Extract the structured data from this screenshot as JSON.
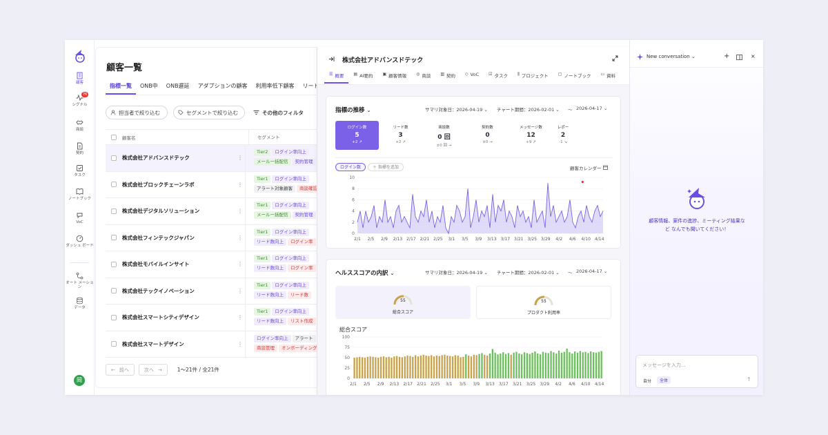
{
  "rail": {
    "items": [
      {
        "label": "顧客",
        "icon": "building-icon"
      },
      {
        "label": "シグナル",
        "icon": "pulse-icon",
        "badge": "76"
      },
      {
        "label": "商談",
        "icon": "handshake-icon"
      },
      {
        "label": "契約",
        "icon": "document-icon"
      },
      {
        "label": "タスク",
        "icon": "checkbox-icon"
      },
      {
        "label": "ノートブック",
        "icon": "book-icon"
      },
      {
        "label": "VoC",
        "icon": "voc-icon"
      },
      {
        "label": "ダッシュ ボード",
        "icon": "dashboard-icon"
      },
      {
        "label": "オート メーション",
        "icon": "automation-icon"
      },
      {
        "label": "データ",
        "icon": "database-icon"
      }
    ],
    "avatar": "岡"
  },
  "list": {
    "title": "顧客一覧",
    "tabs": [
      "指標一覧",
      "ONB中",
      "ONB遅延",
      "アダプションの顧客",
      "利用率低下顧客",
      "リード"
    ],
    "filters": {
      "assignee": "担当者で絞り込む",
      "segment": "セグメントで絞り込む",
      "other": "その他のフィルタ"
    },
    "columns": {
      "name": "顧客名",
      "segment": "セグメント"
    },
    "rows": [
      {
        "name": "株式会社アドバンスドテック",
        "tags": [
          {
            "t": "Tier2",
            "c": "g"
          },
          {
            "t": "ログイン率向上",
            "c": "p"
          },
          {
            "t": "メール一括配信",
            "c": "g"
          },
          {
            "t": "契約管理",
            "c": "p"
          }
        ]
      },
      {
        "name": "株式会社ブロックチェーンラボ",
        "tags": [
          {
            "t": "Tier1",
            "c": "g"
          },
          {
            "t": "ログイン率向上",
            "c": "p"
          },
          {
            "t": "アラート対象顧客",
            "c": "gr"
          },
          {
            "t": "商談確認",
            "c": "r"
          }
        ]
      },
      {
        "name": "株式会社デジタルソリューション",
        "tags": [
          {
            "t": "Tier1",
            "c": "g"
          },
          {
            "t": "ログイン率向上",
            "c": "p"
          },
          {
            "t": "メール一括配信",
            "c": "g"
          },
          {
            "t": "契約管理",
            "c": "p"
          }
        ]
      },
      {
        "name": "株式会社フィンテックジャパン",
        "tags": [
          {
            "t": "Tier1",
            "c": "g"
          },
          {
            "t": "ログイン率向上",
            "c": "p"
          },
          {
            "t": "リード数向上",
            "c": "p"
          },
          {
            "t": "ログイン率",
            "c": "r"
          }
        ]
      },
      {
        "name": "株式会社モバイルインサイト",
        "tags": [
          {
            "t": "Tier1",
            "c": "g"
          },
          {
            "t": "ログイン率向上",
            "c": "p"
          },
          {
            "t": "リード数向上",
            "c": "p"
          },
          {
            "t": "ログイン率",
            "c": "r"
          }
        ]
      },
      {
        "name": "株式会社テックイノベーション",
        "tags": [
          {
            "t": "Tier1",
            "c": "g"
          },
          {
            "t": "ログイン率向上",
            "c": "p"
          },
          {
            "t": "リード数向上",
            "c": "p"
          },
          {
            "t": "リード数",
            "c": "r"
          }
        ]
      },
      {
        "name": "株式会社スマートシティデザイン",
        "tags": [
          {
            "t": "Tier1",
            "c": "g"
          },
          {
            "t": "ログイン率向上",
            "c": "p"
          },
          {
            "t": "リード数向上",
            "c": "p"
          },
          {
            "t": "リスト作成",
            "c": "r"
          }
        ]
      },
      {
        "name": "株式会社スマートデザイン",
        "tags": [
          {
            "t": "ログイン率向上",
            "c": "p"
          },
          {
            "t": "アラート",
            "c": "gr"
          },
          {
            "t": "商談管理",
            "c": "r"
          },
          {
            "t": "オンボーディング",
            "c": "r"
          }
        ]
      }
    ],
    "pager": {
      "prev": "前へ",
      "next": "次へ",
      "count": "1〜21件 / 全21件"
    }
  },
  "detail": {
    "company": "株式会社アドバンスドテック",
    "tabs": [
      "概要",
      "AI要約",
      "顧客情報",
      "商談",
      "契約",
      "VoC",
      "タスク",
      "プロジェクト",
      "ノートブック",
      "資料"
    ],
    "metrics_card": {
      "title": "指標の推移",
      "summary_date": "サマリ対象日：2026-04-19",
      "chart_period": "チャート期間：2026-02-01",
      "tilde": "〜",
      "end_date": "2026-04-17",
      "kpis": [
        {
          "label": "ログイン数",
          "value": "5",
          "delta": "+2 ↗"
        },
        {
          "label": "リード数",
          "value": "3",
          "delta": "+2 ↗"
        },
        {
          "label": "商談数",
          "value": "0 回",
          "delta": "±0 回 →"
        },
        {
          "label": "契約数",
          "value": "0",
          "delta": "±0 →"
        },
        {
          "label": "メッセージ数",
          "value": "12",
          "delta": "+9 ↗"
        },
        {
          "label": "レポー",
          "value": "2",
          "delta": "-1 ↘"
        }
      ],
      "chip_active": "ログイン数",
      "chip_add": "＋ 指標を追加",
      "calendar": "顧客カレンダー"
    },
    "health_card": {
      "title": "ヘルススコアの内訳",
      "summary_date": "サマリ対象日：2026-04-19",
      "chart_period": "チャート期間：2026-02-01",
      "tilde": "〜",
      "end_date": "2026-04-17",
      "total": {
        "label": "総合スコア",
        "value": "55"
      },
      "usage": {
        "label": "プロダクト利用率",
        "value": "55"
      },
      "chart_title": "総合スコア"
    }
  },
  "chart_data": [
    {
      "type": "area",
      "title": "ログイン数",
      "x_ticks": [
        "2/1",
        "2/5",
        "2/9",
        "2/13",
        "2/17",
        "2/21",
        "2/25",
        "3/1",
        "3/5",
        "3/9",
        "3/13",
        "3/17",
        "3/21",
        "3/25",
        "3/29",
        "4/2",
        "4/6",
        "4/10",
        "4/14"
      ],
      "y_ticks": [
        "0",
        "2",
        "4",
        "6",
        "8",
        "10"
      ],
      "ylim": [
        0,
        10
      ],
      "values": [
        2,
        4,
        1,
        4,
        2,
        3,
        5,
        1,
        3,
        2,
        6,
        2,
        3,
        1,
        4,
        5,
        2,
        3,
        2,
        1,
        7,
        3,
        2,
        4,
        3,
        6,
        2,
        4,
        1,
        3,
        2,
        5,
        1,
        0,
        3,
        2,
        5,
        4,
        2,
        3,
        8,
        1,
        3,
        6,
        2,
        4,
        3,
        5,
        1,
        7,
        2,
        5,
        4,
        6,
        2,
        4,
        3,
        1,
        5,
        3,
        4,
        2,
        3,
        1,
        6,
        2,
        3,
        4,
        1,
        9,
        3,
        5,
        2,
        3,
        4,
        2,
        3,
        6,
        2,
        1,
        3,
        4,
        2,
        5,
        3,
        2,
        4,
        5,
        3,
        4
      ],
      "color": "#7b61e8",
      "marker": "red dot near 4/6"
    },
    {
      "type": "bar",
      "title": "総合スコア",
      "x_ticks": [
        "2/1",
        "2/5",
        "2/9",
        "2/13",
        "2/17",
        "2/21",
        "2/25",
        "3/1",
        "3/5",
        "3/9",
        "3/13",
        "3/17",
        "3/21",
        "3/25",
        "3/29",
        "4/2",
        "4/6",
        "4/10",
        "4/14"
      ],
      "y_ticks": [
        "0",
        "25",
        "50",
        "75",
        "100"
      ],
      "ylim": [
        0,
        100
      ],
      "values": [
        50,
        51,
        52,
        51,
        50,
        52,
        53,
        52,
        51,
        50,
        52,
        53,
        51,
        52,
        50,
        53,
        54,
        52,
        51,
        53,
        55,
        54,
        52,
        56,
        53,
        55,
        57,
        55,
        54,
        56,
        53,
        55,
        54,
        56,
        57,
        55,
        54,
        53,
        56,
        55,
        51,
        52,
        58,
        55,
        53,
        57,
        56,
        59,
        61,
        57,
        55,
        60,
        71,
        62,
        58,
        60,
        63,
        59,
        61,
        57,
        62,
        64,
        60,
        58,
        63,
        61,
        59,
        62,
        65,
        60,
        58,
        64,
        62,
        61,
        66,
        63,
        60,
        67,
        62,
        64,
        72,
        63,
        60,
        65,
        62,
        66,
        63,
        64,
        61,
        65,
        63,
        62,
        64,
        66
      ],
      "color_low": "#c9a24a",
      "color_high": "#6bbf5c"
    }
  ],
  "chat": {
    "title": "New conversation",
    "message": "顧客情報、案件の進捗、ミーティング結果など なんでも聞いてください！",
    "input_placeholder": "メッセージを入力...",
    "scope_self": "自分",
    "scope_all": "全体"
  }
}
